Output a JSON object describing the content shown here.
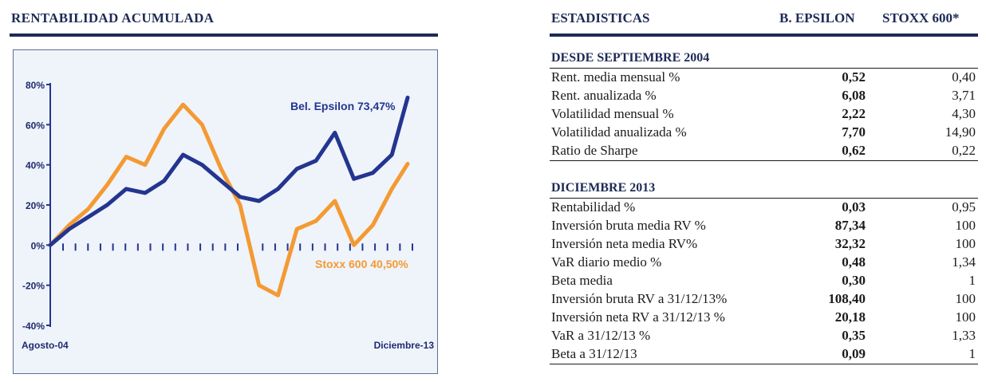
{
  "left": {
    "title": "RENTABILIDAD ACUMULADA"
  },
  "right": {
    "title": "ESTADISTICAS",
    "col1": "B. EPSILON",
    "col2": "STOXX 600*",
    "section1": {
      "title": "DESDE SEPTIEMBRE 2004",
      "rows": [
        {
          "label": "Rent. media mensual %",
          "v1": "0,52",
          "v2": "0,40"
        },
        {
          "label": "Rent. anualizada %",
          "v1": "6,08",
          "v2": "3,71"
        },
        {
          "label": "Volatilidad mensual %",
          "v1": "2,22",
          "v2": "4,30"
        },
        {
          "label": "Volatilidad anualizada %",
          "v1": "7,70",
          "v2": "14,90"
        },
        {
          "label": "Ratio de Sharpe",
          "v1": "0,62",
          "v2": "0,22"
        }
      ]
    },
    "section2": {
      "title": "DICIEMBRE 2013",
      "rows": [
        {
          "label": "Rentabilidad %",
          "v1": "0,03",
          "v2": "0,95"
        },
        {
          "label": "Inversión bruta media RV %",
          "v1": "87,34",
          "v2": "100"
        },
        {
          "label": "Inversión neta media RV%",
          "v1": "32,32",
          "v2": "100"
        },
        {
          "label": "VaR diario medio %",
          "v1": "0,48",
          "v2": "1,34"
        },
        {
          "label": "Beta media",
          "v1": "0,30",
          "v2": "1"
        },
        {
          "label": "Inversión bruta RV a 31/12/13%",
          "v1": "108,40",
          "v2": "100"
        },
        {
          "label": "Inversión neta RV a 31/12/13 %",
          "v1": "20,18",
          "v2": "100"
        },
        {
          "label": "VaR a 31/12/13 %",
          "v1": "0,35",
          "v2": "1,33"
        },
        {
          "label": "Beta a 31/12/13",
          "v1": "0,09",
          "v2": "1"
        }
      ]
    }
  },
  "chart_data": {
    "type": "line",
    "title": "RENTABILIDAD ACUMULADA",
    "x_start_label": "Agosto-04",
    "x_end_label": "Diciembre-13",
    "ylim": [
      -40,
      80
    ],
    "yticks": [
      -40,
      -20,
      0,
      20,
      40,
      60,
      80
    ],
    "ytick_labels": [
      "-40%",
      "-20%",
      "0%",
      "20%",
      "40%",
      "60%",
      "80%"
    ],
    "grid": false,
    "x": [
      0,
      6,
      12,
      18,
      24,
      30,
      36,
      42,
      48,
      54,
      60,
      66,
      72,
      78,
      84,
      90,
      96,
      102,
      108,
      113
    ],
    "series": [
      {
        "name": "Bel. Epsilon",
        "label": "Bel. Epsilon 73,47%",
        "color": "#23358f",
        "values": [
          0,
          8,
          14,
          20,
          28,
          26,
          32,
          45,
          40,
          32,
          24,
          22,
          28,
          38,
          42,
          56,
          33,
          36,
          45,
          73.47
        ]
      },
      {
        "name": "Stoxx 600",
        "label": "Stoxx  600 40,50%",
        "color": "#f39a32",
        "values": [
          0,
          10,
          18,
          30,
          44,
          40,
          58,
          70,
          60,
          38,
          20,
          -20,
          -25,
          8,
          12,
          22,
          0,
          10,
          28,
          40.5
        ]
      }
    ]
  }
}
